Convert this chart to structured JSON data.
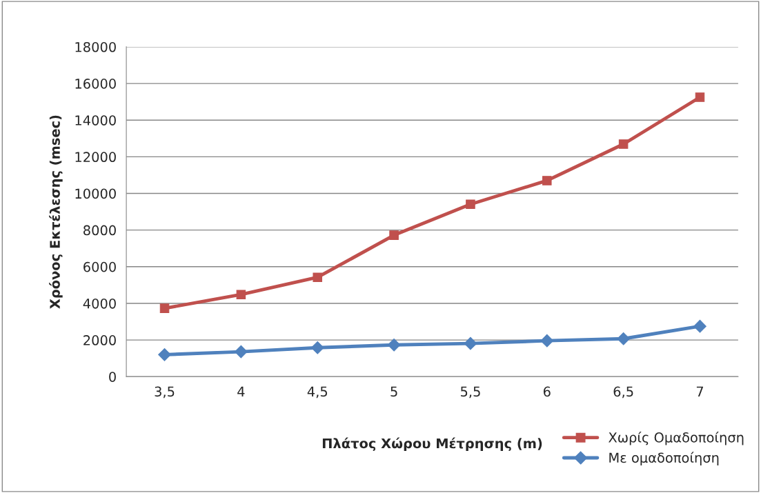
{
  "chart_data": {
    "type": "line",
    "xlabel": "Πλάτος Χώρου Μέτρησης (m)",
    "ylabel": "Χρόνος Εκτέλεσης (msec)",
    "categories": [
      "3,5",
      "4",
      "4,5",
      "5",
      "5,5",
      "6",
      "6,5",
      "7"
    ],
    "series": [
      {
        "name": "Χωρίς Ομαδοποίηση",
        "color": "#c0504d",
        "marker": "square",
        "values": [
          3730,
          4480,
          5420,
          7720,
          9410,
          10700,
          12690,
          15250
        ]
      },
      {
        "name": "Με ομαδοποίηση",
        "color": "#4f81bd",
        "marker": "diamond",
        "values": [
          1200,
          1360,
          1580,
          1730,
          1810,
          1960,
          2070,
          2750
        ]
      }
    ],
    "ylim": [
      0,
      18000
    ],
    "yticks": [
      0,
      2000,
      4000,
      6000,
      8000,
      10000,
      12000,
      14000,
      16000,
      18000
    ],
    "grid": "y",
    "legend": "bottom right",
    "line_style": "solid"
  }
}
